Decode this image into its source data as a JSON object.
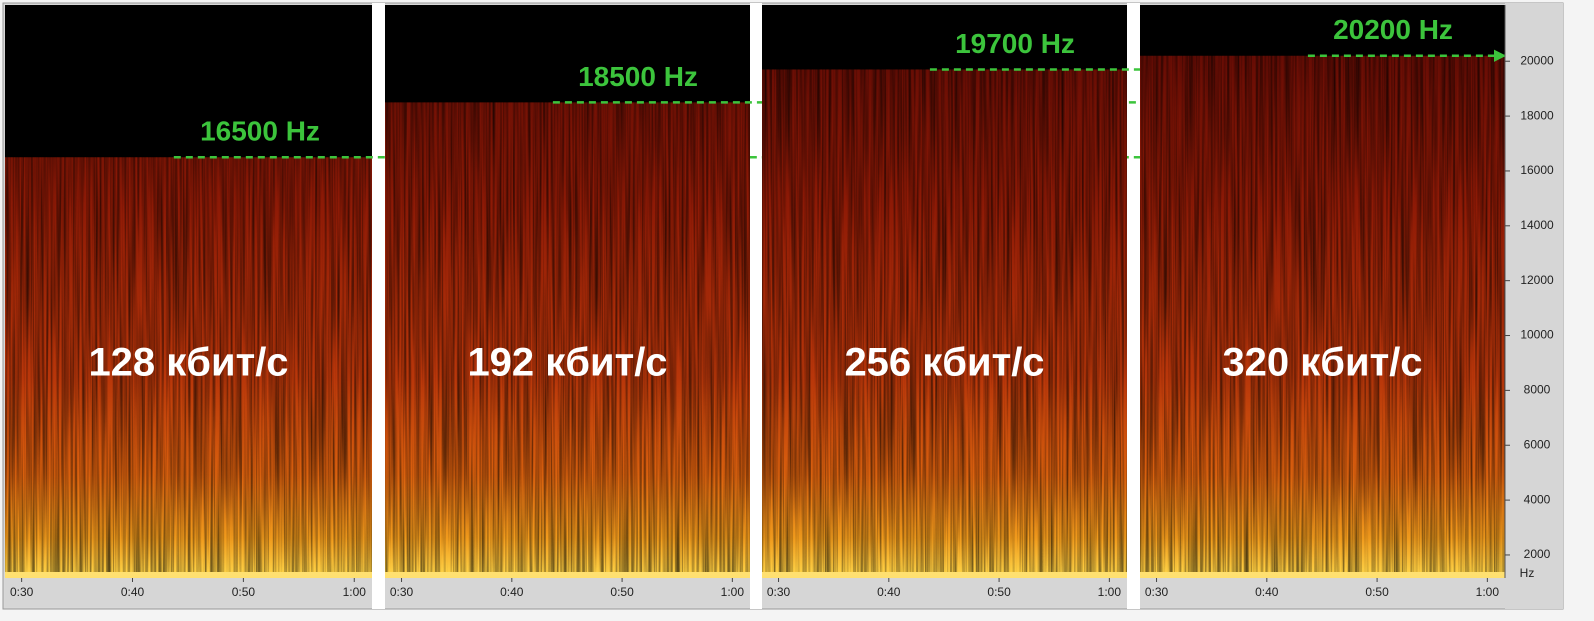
{
  "chart_data": {
    "type": "spectrogram",
    "panels": [
      {
        "label": "128 кбит/с",
        "cutoff": 16500,
        "cutoff_label": "16500 Hz"
      },
      {
        "label": "192 кбит/с",
        "cutoff": 18500,
        "cutoff_label": "18500 Hz"
      },
      {
        "label": "256 кбит/с",
        "cutoff": 19700,
        "cutoff_label": "19700 Hz"
      },
      {
        "label": "320 кбит/с",
        "cutoff": 20200,
        "cutoff_label": "20200 Hz"
      }
    ],
    "xlim": [
      28.5,
      61.6
    ],
    "xticks": [
      {
        "value": 30,
        "label": "0:30"
      },
      {
        "value": 40,
        "label": "0:40"
      },
      {
        "value": 50,
        "label": "0:50"
      },
      {
        "value": 60,
        "label": "1:00"
      }
    ],
    "ylim": [
      1160,
      22050
    ],
    "yticks": [
      2000,
      4000,
      6000,
      8000,
      10000,
      12000,
      14000,
      16000,
      18000,
      20000
    ],
    "y_unit": "Hz",
    "arrow_color": "#3cc43c"
  }
}
